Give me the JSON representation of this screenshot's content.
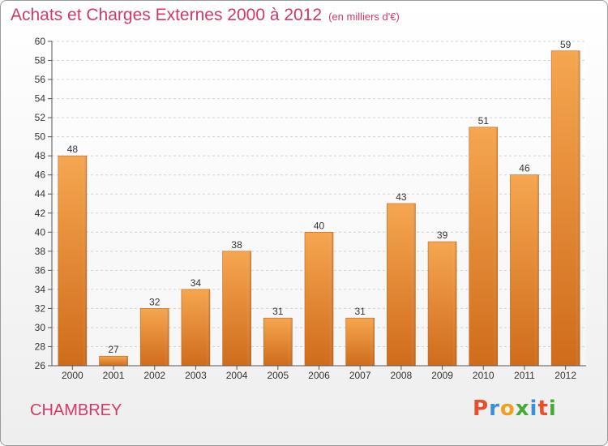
{
  "title": "Achats et Charges Externes 2000 à 2012",
  "subtitle": "(en milliers d'€)",
  "town": "CHAMBREY",
  "logo": {
    "text": "Proxiti",
    "colors": [
      "#e8502c",
      "#3a8fd6",
      "#f0a020",
      "#48a838",
      "#3a8fd6",
      "#e8502c",
      "#48a838"
    ]
  },
  "colors": {
    "bar": "#f09a3e",
    "bar_dark": "#c9681a",
    "title": "#d13a66"
  },
  "chart_data": {
    "type": "bar",
    "categories": [
      "2000",
      "2001",
      "2002",
      "2003",
      "2004",
      "2005",
      "2006",
      "2007",
      "2008",
      "2009",
      "2010",
      "2011",
      "2012"
    ],
    "values": [
      48,
      27,
      32,
      34,
      38,
      31,
      40,
      31,
      43,
      39,
      51,
      46,
      59
    ],
    "ylim": [
      26,
      60
    ],
    "yticks": [
      26,
      28,
      30,
      32,
      34,
      36,
      38,
      40,
      42,
      44,
      46,
      48,
      50,
      52,
      54,
      56,
      58,
      60
    ],
    "grid": true,
    "xlabel": "",
    "ylabel": ""
  }
}
